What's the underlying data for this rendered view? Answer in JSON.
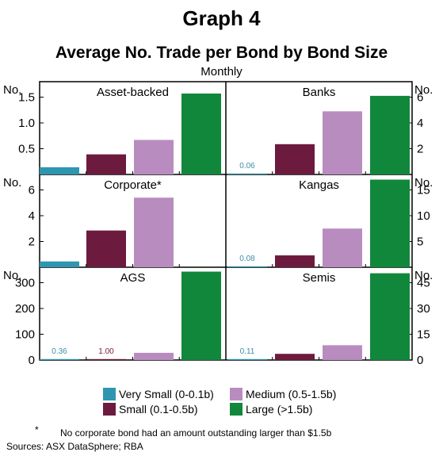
{
  "header": {
    "graph_label": "Graph 4",
    "title": "Average No. Trade per Bond by Bond Size",
    "subtitle": "Monthly"
  },
  "colors": {
    "very_small": "#2e96b0",
    "small": "#6d1a3f",
    "medium": "#b98cc0",
    "large": "#11873b",
    "label_very_small": "#3a8fa8",
    "label_small": "#7d1a3f"
  },
  "legend": [
    {
      "label": "Very Small (0-0.1b)",
      "color": "#2e96b0"
    },
    {
      "label": "Medium (0.5-1.5b)",
      "color": "#b98cc0"
    },
    {
      "label": "Small (0.1-0.5b)",
      "color": "#6d1a3f"
    },
    {
      "label": "Large (>1.5b)",
      "color": "#11873b"
    }
  ],
  "footnote": {
    "marker": "*",
    "text": "No corporate bond had an amount outstanding larger than $1.5b"
  },
  "sources": "Sources: ASX DataSphere; RBA",
  "chart_data": [
    {
      "type": "bar",
      "title": "Asset-backed",
      "unit_label": "No.",
      "axis_side": "left",
      "categories": [
        "Very Small (0-0.1b)",
        "Small (0.1-0.5b)",
        "Medium (0.5-1.5b)",
        "Large (>1.5b)"
      ],
      "values": [
        0.14,
        0.39,
        0.67,
        1.57
      ],
      "ylim": [
        0,
        1.8
      ],
      "ticks": [
        0.5,
        1.0,
        1.5
      ],
      "tick_labels": [
        "0.5",
        "1.0",
        "1.5"
      ],
      "data_labels": []
    },
    {
      "type": "bar",
      "title": "Banks",
      "unit_label": "No.",
      "axis_side": "right",
      "categories": [
        "Very Small (0-0.1b)",
        "Small (0.1-0.5b)",
        "Medium (0.5-1.5b)",
        "Large (>1.5b)"
      ],
      "values": [
        0.06,
        2.35,
        4.9,
        6.1
      ],
      "ylim": [
        0,
        7.2
      ],
      "ticks": [
        2,
        4,
        6
      ],
      "tick_labels": [
        "2",
        "4",
        "6"
      ],
      "data_labels": [
        {
          "index": 0,
          "text": "0.06"
        }
      ]
    },
    {
      "type": "bar",
      "title": "Corporate*",
      "unit_label": "No.",
      "axis_side": "left",
      "categories": [
        "Very Small (0-0.1b)",
        "Small (0.1-0.5b)",
        "Medium (0.5-1.5b)",
        "Large (>1.5b)"
      ],
      "values": [
        0.45,
        2.85,
        5.4,
        0
      ],
      "ylim": [
        0,
        7.2
      ],
      "ticks": [
        2,
        4,
        6
      ],
      "tick_labels": [
        "2",
        "4",
        "6"
      ],
      "data_labels": []
    },
    {
      "type": "bar",
      "title": "Kangas",
      "unit_label": "No.",
      "axis_side": "right",
      "categories": [
        "Very Small (0-0.1b)",
        "Small (0.1-0.5b)",
        "Medium (0.5-1.5b)",
        "Large (>1.5b)"
      ],
      "values": [
        0.08,
        2.3,
        7.5,
        17.0
      ],
      "ylim": [
        0,
        18
      ],
      "ticks": [
        5,
        10,
        15
      ],
      "tick_labels": [
        "5",
        "10",
        "15"
      ],
      "data_labels": [
        {
          "index": 0,
          "text": "0.08"
        }
      ]
    },
    {
      "type": "bar",
      "title": "AGS",
      "unit_label": "No.",
      "axis_side": "left",
      "categories": [
        "Very Small (0-0.1b)",
        "Small (0.1-0.5b)",
        "Medium (0.5-1.5b)",
        "Large (>1.5b)"
      ],
      "values": [
        0.36,
        1.0,
        28,
        343
      ],
      "ylim": [
        0,
        360
      ],
      "ticks": [
        0,
        100,
        200,
        300
      ],
      "tick_labels": [
        "0",
        "100",
        "200",
        "300"
      ],
      "data_labels": [
        {
          "index": 0,
          "text": "0.36"
        },
        {
          "index": 1,
          "text": "1.00"
        }
      ]
    },
    {
      "type": "bar",
      "title": "Semis",
      "unit_label": "No.",
      "axis_side": "right",
      "categories": [
        "Very Small (0-0.1b)",
        "Small (0.1-0.5b)",
        "Medium (0.5-1.5b)",
        "Large (>1.5b)"
      ],
      "values": [
        0.11,
        3.6,
        8.6,
        50.5
      ],
      "ylim": [
        0,
        54
      ],
      "ticks": [
        0,
        15,
        30,
        45
      ],
      "tick_labels": [
        "0",
        "15",
        "30",
        "45"
      ],
      "data_labels": [
        {
          "index": 0,
          "text": "0.11"
        }
      ]
    }
  ]
}
